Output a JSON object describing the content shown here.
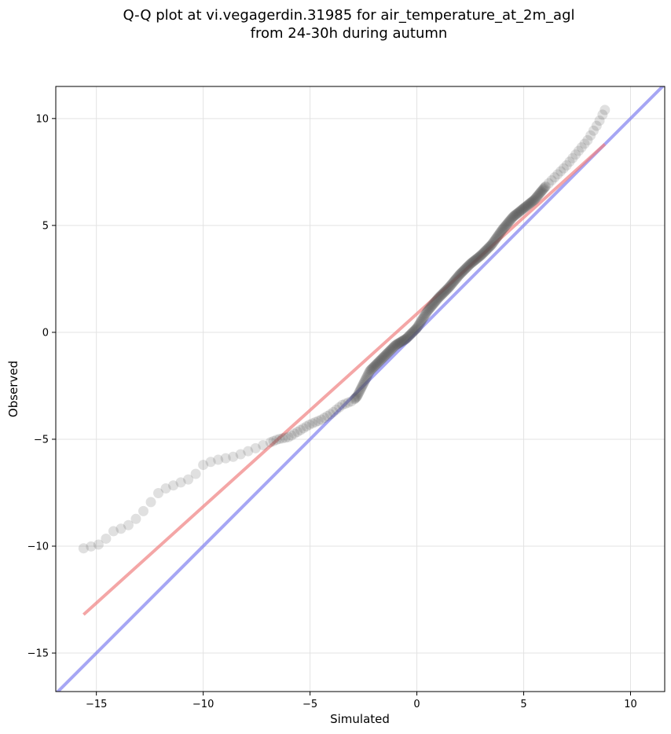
{
  "chart_data": {
    "type": "scatter",
    "title_lines": [
      "Q-Q plot at vi.vegagerdin.31985 for air_temperature_at_2m_agl",
      "from 24-30h during autumn"
    ],
    "xlabel": "Simulated",
    "ylabel": "Observed",
    "xlim": [
      -16.9,
      11.6
    ],
    "ylim": [
      -16.8,
      11.5
    ],
    "xticks": [
      -15,
      -10,
      -5,
      0,
      5,
      10
    ],
    "yticks": [
      -15,
      -10,
      -5,
      0,
      5,
      10
    ],
    "xtick_labels": [
      "−15",
      "−10",
      "−5",
      "0",
      "5",
      "10"
    ],
    "ytick_labels": [
      "−15",
      "−10",
      "−5",
      "0",
      "5",
      "10"
    ],
    "grid": true,
    "colors": {
      "points": "#555555",
      "fit_line": "#f08080",
      "identity_line": "#8080f0"
    },
    "fit_line": {
      "x": [
        -15.6,
        8.8
      ],
      "y": [
        -13.2,
        8.8
      ]
    },
    "identity_line": {
      "x": [
        -16.9,
        11.6
      ],
      "y": [
        -16.9,
        11.6
      ]
    },
    "quantile_curve": {
      "x": [
        -15.6,
        -14.8,
        -14.2,
        -13.6,
        -13.0,
        -12.5,
        -12.0,
        -11.5,
        -11.0,
        -10.5,
        -10.0,
        -9.5,
        -9.0,
        -8.5,
        -8.0,
        -7.5,
        -7.0,
        -6.5,
        -6.0,
        -5.5,
        -5.0,
        -4.5,
        -4.0,
        -3.5,
        -3.0,
        -2.8,
        -2.6,
        -2.4,
        -2.2,
        -2.0,
        -1.5,
        -1.0,
        -0.5,
        0.0,
        0.5,
        1.0,
        1.5,
        2.0,
        2.5,
        3.0,
        3.5,
        4.0,
        4.5,
        5.0,
        5.5,
        6.0,
        6.5,
        7.0,
        7.5,
        8.0,
        8.5,
        8.8
      ],
      "y": [
        -10.1,
        -9.9,
        -9.3,
        -9.1,
        -8.6,
        -8.0,
        -7.4,
        -7.2,
        -7.0,
        -6.8,
        -6.2,
        -6.0,
        -5.9,
        -5.8,
        -5.6,
        -5.4,
        -5.2,
        -5.0,
        -4.9,
        -4.6,
        -4.3,
        -4.1,
        -3.8,
        -3.4,
        -3.2,
        -3.0,
        -2.6,
        -2.2,
        -1.8,
        -1.6,
        -1.1,
        -0.6,
        -0.3,
        0.2,
        1.0,
        1.6,
        2.1,
        2.7,
        3.2,
        3.6,
        4.1,
        4.8,
        5.4,
        5.8,
        6.2,
        6.8,
        7.3,
        7.8,
        8.4,
        9.0,
        9.8,
        10.4
      ]
    }
  }
}
